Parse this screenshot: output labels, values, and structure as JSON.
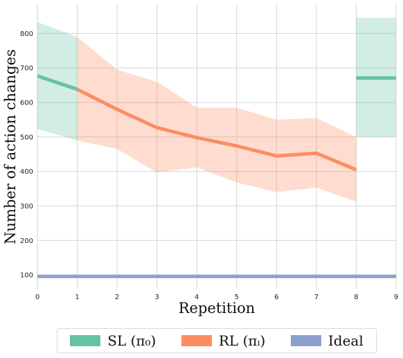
{
  "chart_data": {
    "type": "line",
    "title": "",
    "xlabel": "Repetition",
    "ylabel": "Number of action changes",
    "xlim": [
      0,
      9
    ],
    "ylim": [
      60,
      885
    ],
    "x_ticks": [
      "0",
      "1",
      "2",
      "3",
      "4",
      "5",
      "6",
      "7",
      "8",
      "9"
    ],
    "y_ticks": [
      "100",
      "200",
      "300",
      "400",
      "500",
      "600",
      "700",
      "800"
    ],
    "grid": true,
    "legend_position": "bottom",
    "series": [
      {
        "name": "SL (π₀)",
        "color": "#66c2a5",
        "band_color": "#66c2a5",
        "segments": [
          {
            "x": [
              0,
              1
            ],
            "y": [
              677,
              638
            ],
            "lower": [
              523,
              490
            ],
            "upper": [
              833,
              790
            ]
          },
          {
            "x": [
              8,
              9
            ],
            "y": [
              671,
              671
            ],
            "lower": [
              500,
              500
            ],
            "upper": [
              845,
              845
            ]
          }
        ]
      },
      {
        "name": "RL (πᵢ)",
        "color": "#fc8d62",
        "band_color": "#fc8d62",
        "segments": [
          {
            "x": [
              1,
              2,
              3,
              4,
              5,
              6,
              7,
              8
            ],
            "y": [
              638,
              580,
              527,
              498,
              474,
              445,
              453,
              405
            ],
            "lower": [
              490,
              465,
              397,
              412,
              368,
              340,
              353,
              313
            ],
            "upper": [
              790,
              695,
              660,
              585,
              585,
              550,
              555,
              500
            ]
          }
        ]
      },
      {
        "name": "Ideal",
        "color": "#8da0cb",
        "segments": [
          {
            "x": [
              0,
              9
            ],
            "y": [
              96,
              96
            ]
          }
        ]
      }
    ]
  },
  "legend": {
    "items": [
      {
        "label": "SL (π₀)",
        "color": "#66c2a5"
      },
      {
        "label": "RL (πᵢ)",
        "color": "#fc8d62"
      },
      {
        "label": "Ideal",
        "color": "#8da0cb"
      }
    ]
  }
}
